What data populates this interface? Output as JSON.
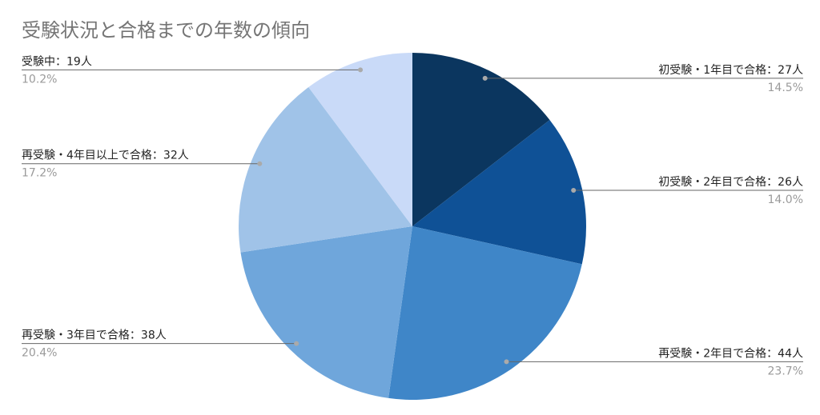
{
  "chart_data": {
    "type": "pie",
    "title": "受験状況と合格までの年数の傾向",
    "categories": [
      "初受験・1年目で合格：27人",
      "初受験・2年目で合格：26人",
      "再受験・2年目で合格：44人",
      "再受験・3年目で合格：38人",
      "再受験・4年目以上で合格：32人",
      "受験中：19人"
    ],
    "values": [
      14.5,
      14.0,
      23.7,
      20.4,
      17.2,
      10.2
    ],
    "value_labels": [
      "14.5%",
      "14.0%",
      "23.7%",
      "20.4%",
      "17.2%",
      "10.2%"
    ],
    "colors": [
      "#0b365f",
      "#0f5196",
      "#3f86c8",
      "#6fa6db",
      "#a0c3e8",
      "#c9daf8"
    ]
  }
}
